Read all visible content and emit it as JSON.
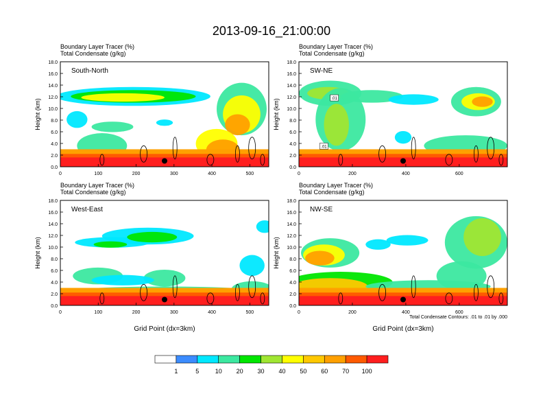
{
  "title": "2013-09-16_21:00:00",
  "panel_label_line1": "Boundary Layer Tracer   (%)",
  "panel_label_line2": "Total Condensate   (g/kg)",
  "colorbar": {
    "levels": [
      "1",
      "5",
      "10",
      "20",
      "30",
      "40",
      "50",
      "60",
      "70",
      "100"
    ],
    "colors": [
      "#ffffff",
      "#3c8cff",
      "#00e8ff",
      "#3ce8a0",
      "#00e600",
      "#a0e632",
      "#ffff00",
      "#ffc800",
      "#ffa000",
      "#ff5a00",
      "#ff1e1e"
    ]
  },
  "chart_data": [
    {
      "type": "heatmap",
      "name": "South-North",
      "title": "South-North",
      "ylabel": "Height (km)",
      "xlabel": "",
      "xlim": [
        0,
        550
      ],
      "ylim": [
        0,
        18
      ],
      "xticks": [
        "0",
        "100",
        "200",
        "300",
        "400",
        "500"
      ],
      "yticks": [
        "0.0",
        "2.0",
        "4.0",
        "6.0",
        "8.0",
        "10.0",
        "12.0",
        "14.0",
        "16.0",
        "18.0"
      ],
      "field": "Boundary Layer Tracer (%)",
      "contour_field": "Total Condensate (g/kg)",
      "marker_x": 275,
      "marker_y": 1.0
    },
    {
      "type": "heatmap",
      "name": "SW-NE",
      "title": "SW-NE",
      "ylabel": "Height (km)",
      "xlabel": "",
      "xlim": [
        0,
        780
      ],
      "ylim": [
        0,
        18
      ],
      "xticks": [
        "0",
        "200",
        "400",
        "600"
      ],
      "yticks": [
        "0.0",
        "2.0",
        "4.0",
        "6.0",
        "8.0",
        "10.0",
        "12.0",
        "14.0",
        "16.0",
        "18.0"
      ],
      "field": "Boundary Layer Tracer (%)",
      "contour_field": "Total Condensate (g/kg)",
      "contour_labels": [
        ".01",
        ".01"
      ],
      "marker_x": 390,
      "marker_y": 1.0
    },
    {
      "type": "heatmap",
      "name": "West-East",
      "title": "West-East",
      "ylabel": "Height (km)",
      "xlabel": "Grid Point (dx=3km)",
      "xlim": [
        0,
        550
      ],
      "ylim": [
        0,
        18
      ],
      "xticks": [
        "0",
        "100",
        "200",
        "300",
        "400",
        "500"
      ],
      "yticks": [
        "0.0",
        "2.0",
        "4.0",
        "6.0",
        "8.0",
        "10.0",
        "12.0",
        "14.0",
        "16.0",
        "18.0"
      ],
      "field": "Boundary Layer Tracer (%)",
      "contour_field": "Total Condensate (g/kg)",
      "marker_x": 275,
      "marker_y": 1.0
    },
    {
      "type": "heatmap",
      "name": "NW-SE",
      "title": "NW-SE",
      "ylabel": "Height (km)",
      "xlabel": "Grid Point (dx=3km)",
      "xlim": [
        0,
        780
      ],
      "ylim": [
        0,
        18
      ],
      "xticks": [
        "0",
        "200",
        "400",
        "600"
      ],
      "yticks": [
        "0.0",
        "2.0",
        "4.0",
        "6.0",
        "8.0",
        "10.0",
        "12.0",
        "14.0",
        "16.0",
        "18.0"
      ],
      "field": "Boundary Layer Tracer (%)",
      "contour_field": "Total Condensate (g/kg)",
      "contour_note": "Total Condensate Contours: .01 to .01 by .000",
      "marker_x": 390,
      "marker_y": 1.0
    }
  ]
}
